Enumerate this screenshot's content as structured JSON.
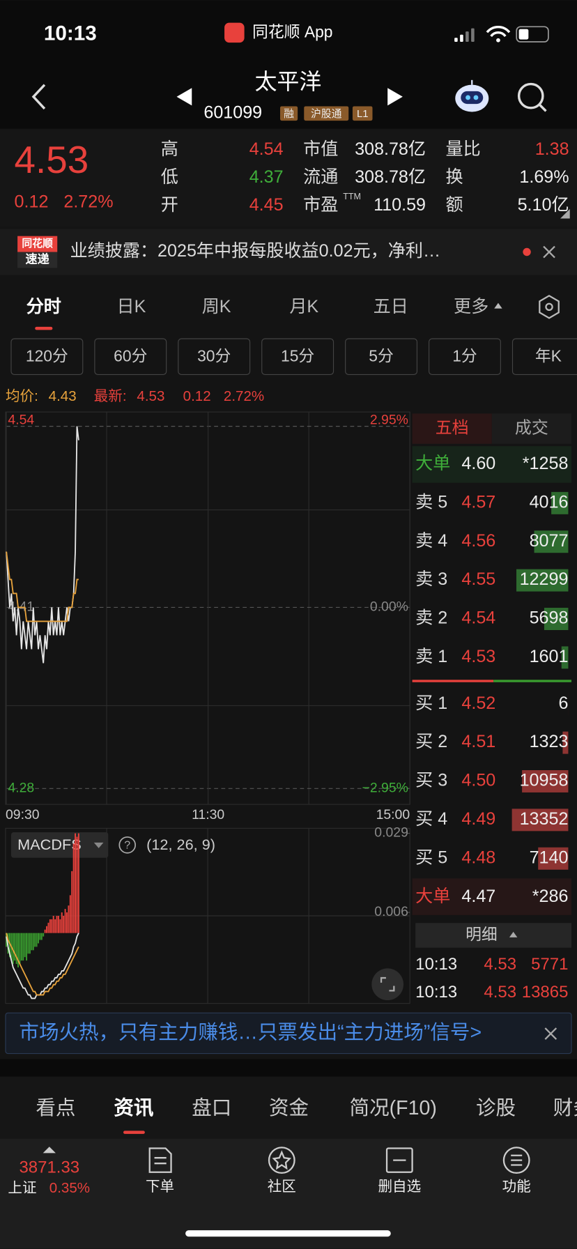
{
  "status_bar": {
    "time": "10:13",
    "app": "同花顺 App"
  },
  "header": {
    "name": "太平洋",
    "code": "601099",
    "badges": [
      "融",
      "沪股通",
      "L1"
    ]
  },
  "quote": {
    "price": "4.53",
    "change": "0.12",
    "change_pct": "2.72%",
    "stats": [
      [
        {
          "label": "高",
          "value": "4.54",
          "color": "#e8413c"
        },
        {
          "label": "市值",
          "value": "308.78亿",
          "color": "#eeeeee"
        },
        {
          "label": "量比",
          "value": "1.38",
          "color": "#e8413c"
        }
      ],
      [
        {
          "label": "低",
          "value": "4.37",
          "color": "#3fae3a"
        },
        {
          "label": "流通",
          "value": "308.78亿",
          "color": "#eeeeee"
        },
        {
          "label": "换",
          "value": "1.69%",
          "color": "#eeeeee"
        }
      ],
      [
        {
          "label": "开",
          "value": "4.45",
          "color": "#e8413c"
        },
        {
          "label": "市盈",
          "sup": "TTM",
          "value": "110.59",
          "color": "#eeeeee"
        },
        {
          "label": "额",
          "value": "5.10亿",
          "color": "#eeeeee"
        }
      ]
    ]
  },
  "news": {
    "badge": [
      "同花顺",
      "速递"
    ],
    "text": "业绩披露：2025年中报每股收益0.02元，净利…"
  },
  "tabs": {
    "items": [
      "分时",
      "日K",
      "周K",
      "月K",
      "五日",
      "更多"
    ],
    "active": 0
  },
  "periods": [
    "120分",
    "60分",
    "30分",
    "15分",
    "5分",
    "1分",
    "年K"
  ],
  "info_line": {
    "avg_label": "均价:",
    "avg": "4.43",
    "last_label": "最新:",
    "last": "4.53",
    "change": "0.12",
    "change_pct": "2.72%"
  },
  "chart_data": [
    {
      "type": "line",
      "x": [
        0,
        1,
        2,
        3,
        4,
        5,
        6,
        7,
        8,
        9,
        10,
        11,
        12,
        13,
        14,
        15,
        16,
        17,
        18,
        19,
        20,
        21,
        22,
        23,
        24,
        25,
        26,
        27,
        28,
        29,
        30,
        31,
        32,
        33,
        34,
        35,
        36,
        37,
        38,
        39,
        40,
        41,
        42,
        43
      ],
      "xlim": [
        0,
        240
      ],
      "xticks": [
        {
          "value": 0,
          "label": "09:30"
        },
        {
          "value": 120,
          "label": "11:30"
        },
        {
          "value": 240,
          "label": "15:00"
        }
      ],
      "ylim": [
        4.28,
        4.54
      ],
      "yticks": [
        4.28,
        4.41,
        4.54
      ],
      "y2lim": [
        -2.95,
        2.95
      ],
      "y2ticks": [
        {
          "value": -2.95,
          "label": "−2.95%"
        },
        {
          "value": 0,
          "label": "0.00%"
        },
        {
          "value": 2.95,
          "label": "2.95%"
        }
      ],
      "series": [
        {
          "color": "#e6e6e6",
          "values": [
            4.45,
            4.43,
            4.41,
            4.42,
            4.4,
            4.41,
            4.39,
            4.41,
            4.4,
            4.38,
            4.4,
            4.39,
            4.38,
            4.4,
            4.39,
            4.38,
            4.41,
            4.39,
            4.4,
            4.38,
            4.39,
            4.38,
            4.37,
            4.39,
            4.38,
            4.4,
            4.39,
            4.41,
            4.39,
            4.4,
            4.39,
            4.41,
            4.39,
            4.4,
            4.39,
            4.4,
            4.41,
            4.4,
            4.41,
            4.41,
            4.42,
            4.45,
            4.54,
            4.53
          ]
        },
        {
          "color": "#e8a33c",
          "values": [
            4.45,
            4.44,
            4.43,
            4.43,
            4.42,
            4.42,
            4.42,
            4.41,
            4.41,
            4.41,
            4.41,
            4.41,
            4.4,
            4.4,
            4.4,
            4.4,
            4.4,
            4.4,
            4.4,
            4.4,
            4.4,
            4.4,
            4.4,
            4.4,
            4.4,
            4.4,
            4.4,
            4.4,
            4.4,
            4.4,
            4.4,
            4.4,
            4.4,
            4.4,
            4.4,
            4.4,
            4.4,
            4.41,
            4.41,
            4.41,
            4.42,
            4.42,
            4.43,
            4.43
          ]
        }
      ]
    },
    {
      "type": "bar",
      "title": "MACDFS",
      "params": "(12, 26, 9)",
      "x": [
        0,
        1,
        2,
        3,
        4,
        5,
        6,
        7,
        8,
        9,
        10,
        11,
        12,
        13,
        14,
        15,
        16,
        17,
        18,
        19,
        20,
        21,
        22,
        23,
        24,
        25,
        26,
        27,
        28,
        29,
        30,
        31,
        32,
        33,
        34,
        35,
        36,
        37,
        38,
        39,
        40,
        41,
        42,
        43
      ],
      "xlim": [
        0,
        240
      ],
      "ylim": [
        -0.02,
        0.03
      ],
      "yticks": [
        0.006,
        0.029
      ],
      "colors": {
        "up": "#e8413c",
        "down": "#3a9c2f"
      },
      "values": [
        -0.004,
        -0.006,
        -0.007,
        -0.008,
        -0.009,
        -0.008,
        -0.009,
        -0.01,
        -0.009,
        -0.008,
        -0.008,
        -0.007,
        -0.008,
        -0.006,
        -0.006,
        -0.005,
        -0.005,
        -0.004,
        -0.004,
        -0.003,
        -0.002,
        -0.002,
        -0.001,
        0.001,
        0.002,
        0.003,
        0.004,
        0.004,
        0.005,
        0.004,
        0.005,
        0.005,
        0.004,
        0.006,
        0.005,
        0.007,
        0.006,
        0.008,
        0.011,
        0.018,
        0.026,
        0.029,
        0.028,
        0.029
      ],
      "series": [
        {
          "color": "#e6e6e6",
          "values": [
            -0.001,
            -0.004,
            -0.006,
            -0.008,
            -0.01,
            -0.011,
            -0.012,
            -0.013,
            -0.014,
            -0.015,
            -0.016,
            -0.016,
            -0.017,
            -0.018,
            -0.018,
            -0.019,
            -0.019,
            -0.019,
            -0.018,
            -0.018,
            -0.018,
            -0.017,
            -0.017,
            -0.016,
            -0.016,
            -0.015,
            -0.015,
            -0.014,
            -0.014,
            -0.013,
            -0.013,
            -0.012,
            -0.012,
            -0.011,
            -0.011,
            -0.01,
            -0.009,
            -0.008,
            -0.007,
            -0.006,
            -0.004,
            -0.003,
            -0.001,
            0
          ]
        },
        {
          "color": "#e8a33c",
          "values": [
            0,
            -0.002,
            -0.003,
            -0.004,
            -0.005,
            -0.006,
            -0.007,
            -0.008,
            -0.009,
            -0.01,
            -0.011,
            -0.012,
            -0.013,
            -0.014,
            -0.015,
            -0.016,
            -0.017,
            -0.017,
            -0.018,
            -0.018,
            -0.018,
            -0.018,
            -0.018,
            -0.017,
            -0.017,
            -0.017,
            -0.016,
            -0.016,
            -0.015,
            -0.015,
            -0.014,
            -0.014,
            -0.013,
            -0.013,
            -0.012,
            -0.012,
            -0.011,
            -0.01,
            -0.009,
            -0.008,
            -0.007,
            -0.006,
            -0.005,
            -0.004
          ]
        }
      ]
    }
  ],
  "order_book": {
    "tabs": [
      "五档",
      "成交"
    ],
    "rows": [
      {
        "label": "大单",
        "price": "4.60",
        "volume": "*1258"
      },
      {
        "label": "卖 5",
        "price": "4.57",
        "volume": "4016"
      },
      {
        "label": "卖 4",
        "price": "4.56",
        "volume": "8077"
      },
      {
        "label": "卖 3",
        "price": "4.55",
        "volume": "12299"
      },
      {
        "label": "卖 2",
        "price": "4.54",
        "volume": "5698"
      },
      {
        "label": "卖 1",
        "price": "4.53",
        "volume": "1601"
      },
      {
        "label": "买 1",
        "price": "4.52",
        "volume": "6"
      },
      {
        "label": "买 2",
        "price": "4.51",
        "volume": "1323"
      },
      {
        "label": "买 3",
        "price": "4.50",
        "volume": "10958"
      },
      {
        "label": "买 4",
        "price": "4.49",
        "volume": "13352"
      },
      {
        "label": "买 5",
        "price": "4.48",
        "volume": "7140"
      },
      {
        "label": "大单",
        "price": "4.47",
        "volume": "*286"
      }
    ]
  },
  "detail": {
    "title": "明细",
    "rows": [
      {
        "time": "10:13",
        "price": "4.53",
        "volume": "5771"
      },
      {
        "time": "10:13",
        "price": "4.53",
        "volume": "13865"
      }
    ]
  },
  "banner": "市场火热，只有主力赚钱…只票发出“主力进场”信号>",
  "info_tabs": {
    "items": [
      "看点",
      "资讯",
      "盘口",
      "资金",
      "简况(F10)",
      "诊股",
      "财务"
    ],
    "active": 1
  },
  "bottom_nav": {
    "index": {
      "value": "3871.33",
      "name": "上证",
      "change_pct": "0.35%"
    },
    "items": [
      "下单",
      "社区",
      "删自选",
      "功能"
    ]
  }
}
